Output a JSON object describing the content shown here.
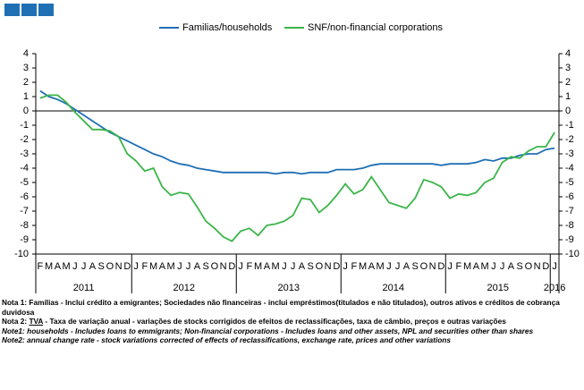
{
  "chart_data": {
    "type": "line",
    "categories": [
      "F",
      "M",
      "A",
      "M",
      "J",
      "J",
      "A",
      "S",
      "O",
      "N",
      "D",
      "J",
      "F",
      "M",
      "A",
      "M",
      "J",
      "J",
      "A",
      "S",
      "O",
      "N",
      "D",
      "J",
      "F",
      "M",
      "A",
      "M",
      "J",
      "J",
      "A",
      "S",
      "O",
      "N",
      "D",
      "J",
      "F",
      "M",
      "A",
      "M",
      "J",
      "J",
      "A",
      "S",
      "O",
      "N",
      "D",
      "J",
      "F",
      "M",
      "A",
      "M",
      "J",
      "J",
      "A",
      "S",
      "O",
      "N",
      "D",
      "J"
    ],
    "x_groups": [
      {
        "label": "2011",
        "count": 11
      },
      {
        "label": "2012",
        "count": 12
      },
      {
        "label": "2013",
        "count": 12
      },
      {
        "label": "2014",
        "count": 12
      },
      {
        "label": "2015",
        "count": 12
      },
      {
        "label": "2016",
        "count": 1
      }
    ],
    "series": [
      {
        "name": "Familias/households",
        "color": "#1f6fb5",
        "values": [
          1.4,
          1.0,
          0.8,
          0.5,
          0.1,
          -0.3,
          -0.7,
          -1.1,
          -1.5,
          -1.8,
          -2.1,
          -2.4,
          -2.7,
          -3.0,
          -3.2,
          -3.5,
          -3.7,
          -3.8,
          -4.0,
          -4.1,
          -4.2,
          -4.3,
          -4.3,
          -4.3,
          -4.3,
          -4.3,
          -4.3,
          -4.4,
          -4.3,
          -4.3,
          -4.4,
          -4.3,
          -4.3,
          -4.3,
          -4.1,
          -4.1,
          -4.1,
          -4.0,
          -3.8,
          -3.7,
          -3.7,
          -3.7,
          -3.7,
          -3.7,
          -3.7,
          -3.7,
          -3.8,
          -3.7,
          -3.7,
          -3.7,
          -3.6,
          -3.4,
          -3.5,
          -3.3,
          -3.3,
          -3.1,
          -3.0,
          -3.0,
          -2.7,
          -2.6
        ]
      },
      {
        "name": "SNF/non-financial corporations",
        "color": "#3cb54a",
        "values": [
          0.9,
          1.1,
          1.1,
          0.6,
          -0.1,
          -0.7,
          -1.3,
          -1.3,
          -1.4,
          -1.8,
          -3.0,
          -3.5,
          -4.2,
          -4.0,
          -5.3,
          -5.9,
          -5.7,
          -5.8,
          -6.7,
          -7.7,
          -8.2,
          -8.8,
          -9.1,
          -8.4,
          -8.2,
          -8.7,
          -8.0,
          -7.9,
          -7.7,
          -7.3,
          -6.1,
          -6.2,
          -7.1,
          -6.6,
          -5.9,
          -5.1,
          -5.8,
          -5.5,
          -4.6,
          -5.5,
          -6.4,
          -6.6,
          -6.8,
          -6.1,
          -4.8,
          -5.0,
          -5.3,
          -6.1,
          -5.8,
          -5.9,
          -5.7,
          -5.0,
          -4.7,
          -3.6,
          -3.2,
          -3.3,
          -2.8,
          -2.5,
          -2.5,
          -1.5
        ]
      }
    ],
    "ylim": [
      -10,
      4
    ],
    "yticks": [
      -10,
      -9,
      -8,
      -7,
      -6,
      -5,
      -4,
      -3,
      -2,
      -1,
      0,
      1,
      2,
      3,
      4
    ],
    "y2lim": [
      -10,
      4
    ],
    "y2ticks": [
      -10,
      -9,
      -8,
      -7,
      -6,
      -5,
      -4,
      -3,
      -2,
      -1,
      0,
      1,
      2,
      3,
      4
    ],
    "grid": false,
    "legend": "top",
    "notes": [
      [
        "Nota 1: Famílias - Inclui crédito a emigrantes; Sociedades não financeiras - inclui empréstimos(titulados e não titulados), outros ativos e créditos de cobrança duvidosa"
      ],
      [
        "Nota 2: ",
        "TVA",
        " - Taxa de variação anual - variações de stocks corrigidos de efeitos de reclassificações, taxa de câmbio, preços e outras variações"
      ],
      [
        "Note1: households - Includes loans to emmigrants; Non-financial corporations - Includes loans and other assets, NPL and securities other than shares"
      ],
      [
        "Note2: annual change rate - stock variations corrected of effects of reclassifications, exchange rate, prices and other variations"
      ]
    ]
  }
}
